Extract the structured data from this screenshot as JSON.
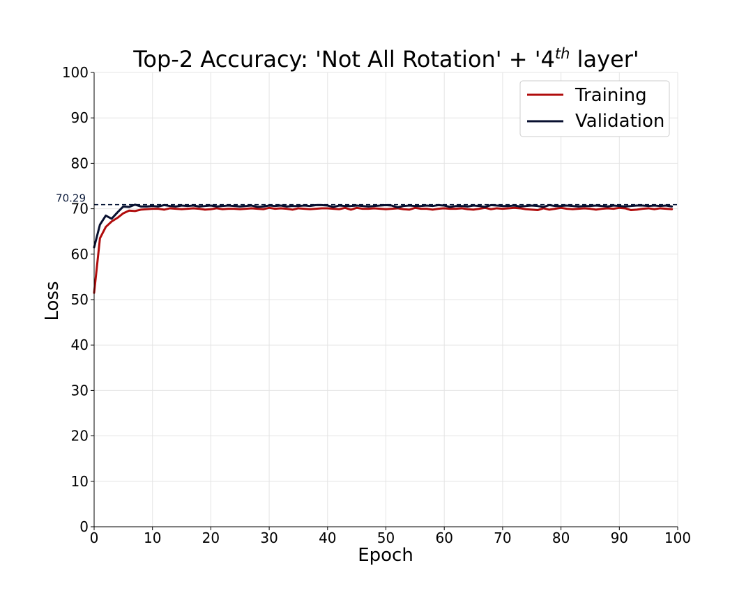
{
  "chart_data": {
    "type": "line",
    "title_parts": [
      "Top-2 Accuracy: 'Not All Rotation' + '4",
      "th",
      " layer'"
    ],
    "xlabel": "Epoch",
    "ylabel": "Loss",
    "xlim": [
      0,
      100
    ],
    "ylim": [
      0,
      100
    ],
    "xticks": [
      0,
      10,
      20,
      30,
      40,
      50,
      60,
      70,
      80,
      90,
      100
    ],
    "yticks": [
      0,
      10,
      20,
      30,
      40,
      50,
      60,
      70,
      80,
      90,
      100
    ],
    "grid": true,
    "legend_position": "top-right",
    "reference_line": {
      "y": 70.29,
      "label": "70.29",
      "style": "dashed",
      "color": "#0b1a3a"
    },
    "colors": {
      "training": "#b00c0c",
      "validation": "#081030",
      "axis": "#000000",
      "grid": "#e4e4e4"
    },
    "series": [
      {
        "name": "Training",
        "values": [
          51.5,
          63.5,
          66.0,
          67.2,
          68.0,
          69.0,
          69.6,
          69.5,
          69.8,
          69.9,
          70.0,
          70.0,
          69.8,
          70.1,
          70.0,
          69.9,
          70.0,
          70.1,
          70.0,
          69.8,
          69.9,
          70.1,
          69.9,
          70.0,
          70.0,
          69.9,
          70.0,
          70.1,
          70.0,
          69.9,
          70.2,
          70.0,
          70.1,
          70.0,
          69.8,
          70.1,
          70.0,
          69.9,
          70.0,
          70.1,
          70.1,
          70.0,
          69.9,
          70.2,
          69.8,
          70.2,
          70.0,
          70.0,
          70.1,
          70.0,
          69.9,
          70.0,
          70.1,
          69.9,
          69.8,
          70.2,
          70.0,
          70.0,
          69.8,
          70.0,
          70.1,
          70.0,
          70.0,
          70.1,
          69.9,
          69.8,
          70.0,
          70.2,
          69.9,
          70.1,
          70.0,
          70.1,
          70.2,
          70.1,
          69.9,
          69.8,
          69.7,
          70.1,
          69.8,
          70.0,
          70.2,
          70.0,
          69.9,
          70.0,
          70.1,
          70.0,
          69.8,
          70.0,
          70.1,
          70.0,
          70.2,
          70.1,
          69.7,
          69.8,
          70.0,
          70.1,
          69.9,
          70.1,
          70.0,
          69.9
        ]
      },
      {
        "name": "Validation",
        "values": [
          61.5,
          66.5,
          68.5,
          67.8,
          69.2,
          70.5,
          70.4,
          70.9,
          70.5,
          70.5,
          70.6,
          70.5,
          70.8,
          70.6,
          70.5,
          70.7,
          70.6,
          70.7,
          70.5,
          70.6,
          70.7,
          70.5,
          70.6,
          70.7,
          70.6,
          70.5,
          70.6,
          70.7,
          70.4,
          70.5,
          70.7,
          70.6,
          70.7,
          70.5,
          70.6,
          70.6,
          70.7,
          70.6,
          70.8,
          70.8,
          70.7,
          70.4,
          70.7,
          70.6,
          70.6,
          70.7,
          70.6,
          70.5,
          70.6,
          70.7,
          70.8,
          70.7,
          70.3,
          70.6,
          70.7,
          70.6,
          70.6,
          70.7,
          70.6,
          70.8,
          70.7,
          70.4,
          70.6,
          70.6,
          70.5,
          70.7,
          70.6,
          70.4,
          70.8,
          70.7,
          70.6,
          70.6,
          70.7,
          70.5,
          70.6,
          70.7,
          70.6,
          70.4,
          70.8,
          70.6,
          70.6,
          70.7,
          70.6,
          70.5,
          70.6,
          70.6,
          70.7,
          70.6,
          70.5,
          70.7,
          70.6,
          70.5,
          70.6,
          70.7,
          70.7,
          70.6,
          70.7,
          70.6,
          70.7,
          70.5
        ]
      }
    ]
  }
}
